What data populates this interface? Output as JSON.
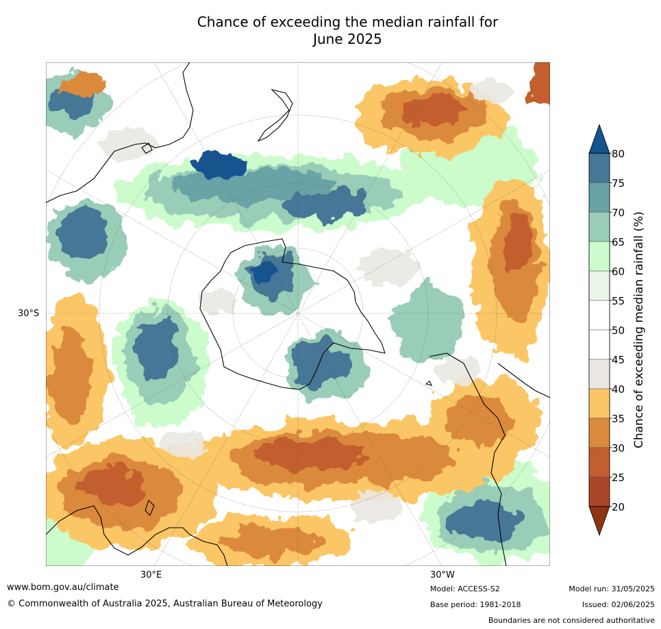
{
  "title": {
    "line1": "Chance of exceeding the median rainfall for",
    "line2": "June 2025"
  },
  "map": {
    "projection": "south polar stereographic",
    "labels": {
      "lat_30s": "30°S",
      "lon_30e": "30°E",
      "lon_30w": "30°W"
    }
  },
  "colorbar": {
    "label": "Chance of exceeding median rainfall (%)",
    "ticks": [
      "20",
      "25",
      "30",
      "35",
      "40",
      "45",
      "50",
      "55",
      "60",
      "65",
      "70",
      "75",
      "80"
    ],
    "colors": {
      "below_20": "#8f3412",
      "20_25": "#a8462a",
      "25_30": "#c35f2f",
      "30_35": "#db8a3d",
      "35_40": "#fbc665",
      "40_45": "#ebe8e3",
      "45_50": "#ffffff",
      "50_55": "#ffffff",
      "55_60": "#e9f5e9",
      "60_65": "#ccfccc",
      "65_70": "#99cdb8",
      "70_75": "#6aa3a5",
      "75_80": "#467796",
      "above_80": "#14538f"
    }
  },
  "footer": {
    "website": "www.bom.gov.au/climate",
    "copyright": "© Commonwealth of Australia 2025, Australian Bureau of Meteorology",
    "model": "Model: ACCESS-S2",
    "base_period": "Base period: 1981-2018",
    "model_run": "Model run: 31/05/2025",
    "issued": "Issued: 02/06/2025",
    "disclaimer": "Boundaries are not considered authoritative"
  }
}
